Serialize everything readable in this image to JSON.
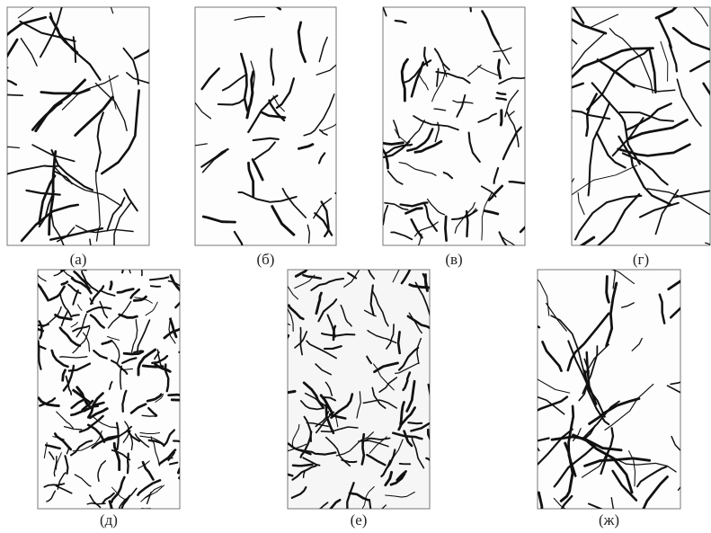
{
  "panels": [
    {
      "label": "(а)"
    },
    {
      "label": "(б)"
    },
    {
      "label": "(в)"
    },
    {
      "label": "(г)"
    },
    {
      "label": "(д)"
    },
    {
      "label": "(е)"
    },
    {
      "label": "(ж)"
    }
  ]
}
